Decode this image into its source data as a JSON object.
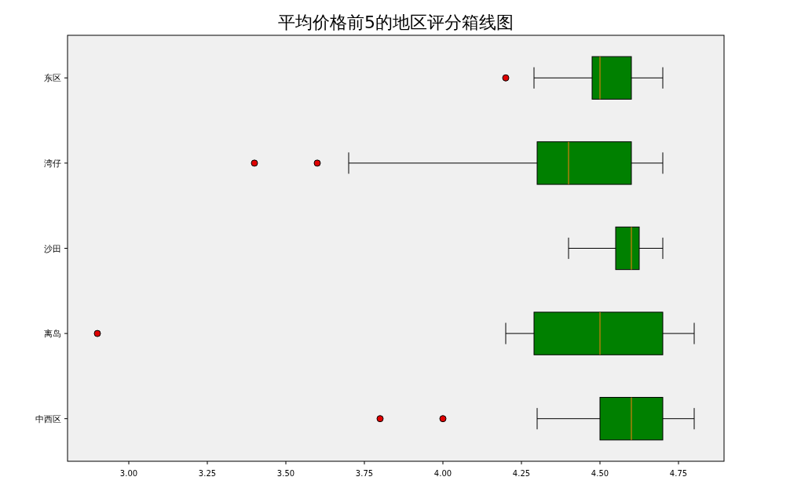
{
  "chart_data": {
    "type": "box",
    "title": "平均价格前5的地区评分箱线图",
    "orientation": "horizontal",
    "categories": [
      "东区",
      "湾仔",
      "沙田",
      "离岛",
      "中西区"
    ],
    "series": [
      {
        "color": "#008000",
        "boxes": [
          {
            "low": 4.29,
            "q1": 4.475,
            "median": 4.5,
            "q3": 4.6,
            "high": 4.7,
            "outliers": [
              4.2
            ]
          },
          {
            "low": 3.7,
            "q1": 4.3,
            "median": 4.4,
            "q3": 4.6,
            "high": 4.7,
            "outliers": [
              3.4,
              3.6
            ]
          },
          {
            "low": 4.4,
            "q1": 4.55,
            "median": 4.6,
            "q3": 4.625,
            "high": 4.7
          },
          {
            "low": 4.2,
            "q1": 4.29,
            "median": 4.5,
            "q3": 4.7,
            "high": 4.8,
            "outliers": [
              2.9
            ]
          },
          {
            "low": 4.3,
            "q1": 4.5,
            "median": 4.6,
            "q3": 4.7,
            "high": 4.8,
            "outliers": [
              3.8,
              4.0
            ]
          }
        ]
      }
    ],
    "xlim": [
      2.805,
      4.895
    ],
    "xticks": [
      {
        "value": 3,
        "label": "3.00"
      },
      {
        "value": 3.25,
        "label": "3.25"
      },
      {
        "value": 3.5,
        "label": "3.50"
      },
      {
        "value": 3.75,
        "label": "3.75"
      },
      {
        "value": 4,
        "label": "4.00"
      },
      {
        "value": 4.25,
        "label": "4.25"
      },
      {
        "value": 4.5,
        "label": "4.50"
      },
      {
        "value": 4.75,
        "label": "4.75"
      }
    ],
    "grid": false
  }
}
